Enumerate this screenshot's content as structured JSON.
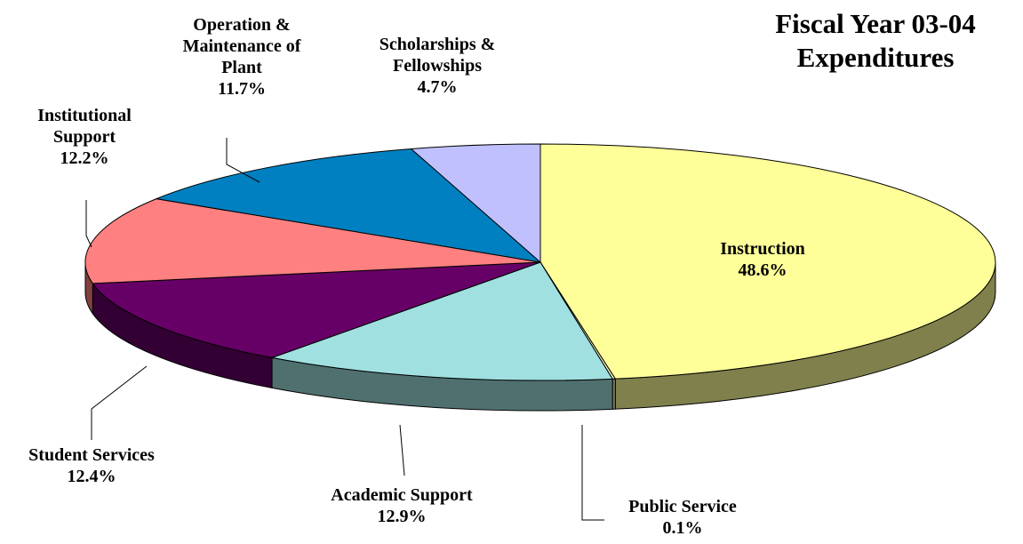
{
  "chart_data": {
    "type": "pie",
    "title": "Fiscal Year 03-04 Expenditures",
    "categories": [
      "Instruction",
      "Public Service",
      "Academic Support",
      "Student Services",
      "Institutional Support",
      "Operation & Maintenance of Plant",
      "Scholarships & Fellowships"
    ],
    "values": [
      48.6,
      0.1,
      12.9,
      12.4,
      12.2,
      11.7,
      4.7
    ],
    "value_labels": [
      "48.6%",
      "0.1%",
      "12.9%",
      "12.4%",
      "12.2%",
      "11.7%",
      "4.7%"
    ],
    "colors": [
      "#FFFF99",
      "#FFFFCC",
      "#A0E0E0",
      "#660066",
      "#FF8080",
      "#0080C0",
      "#C0C0FF"
    ]
  }
}
